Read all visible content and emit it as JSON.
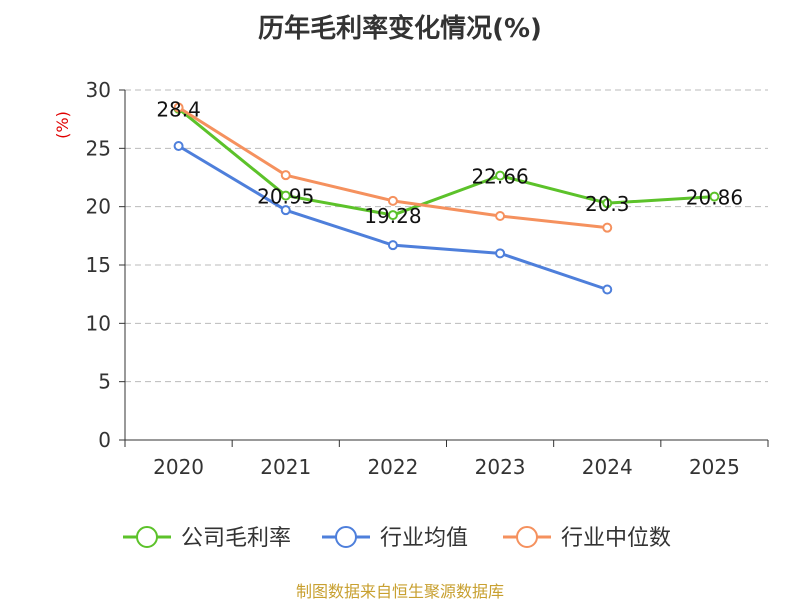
{
  "chart_data": {
    "type": "line",
    "title": "历年毛利率变化情况(%)",
    "xlabel": "",
    "ylabel": "(%)",
    "categories": [
      "2020",
      "2021",
      "2022",
      "2023",
      "2024",
      "2025"
    ],
    "ylim": [
      0,
      30
    ],
    "yticks": [
      0,
      5,
      10,
      15,
      20,
      25,
      30
    ],
    "grid": true,
    "legend_position": "bottom",
    "series": [
      {
        "name": "公司毛利率",
        "color": "#5cc22a",
        "values": [
          28.4,
          20.95,
          19.28,
          22.66,
          20.3,
          20.86
        ],
        "labels": [
          "28.4",
          "20.95",
          "19.28",
          "22.66",
          "20.3",
          "20.86"
        ]
      },
      {
        "name": "行业均值",
        "color": "#4e7fdb",
        "values": [
          25.2,
          19.7,
          16.7,
          16.0,
          12.9,
          null
        ]
      },
      {
        "name": "行业中位数",
        "color": "#f5915e",
        "values": [
          28.5,
          22.7,
          20.5,
          19.2,
          18.2,
          null
        ]
      }
    ]
  },
  "footer": {
    "source": "制图数据来自恒生聚源数据库"
  }
}
